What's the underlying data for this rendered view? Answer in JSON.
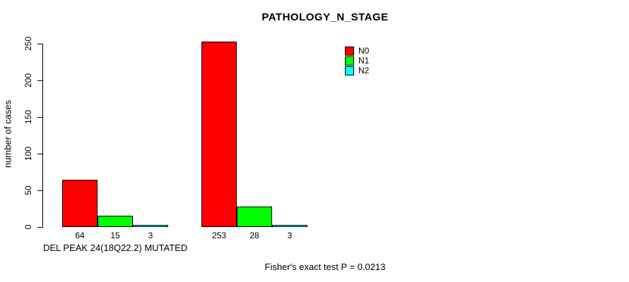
{
  "title": "PATHOLOGY_N_STAGE",
  "y_axis": {
    "label": "number of cases",
    "ticks": [
      0,
      50,
      100,
      150,
      200,
      250
    ]
  },
  "x_axis": {
    "group_label": "DEL PEAK 24(18Q22.2) MUTATED"
  },
  "legend": {
    "items": [
      {
        "label": "N0",
        "color": "#ff0000"
      },
      {
        "label": "N1",
        "color": "#00ff00"
      },
      {
        "label": "N2",
        "color": "#00ffff"
      }
    ]
  },
  "footer": "Fisher's exact test P = 0.0213",
  "chart_data": {
    "type": "bar",
    "title": "PATHOLOGY_N_STAGE",
    "ylabel": "number of cases",
    "xlabel": "",
    "ylim": [
      0,
      250
    ],
    "yticks": [
      0,
      50,
      100,
      150,
      200,
      250
    ],
    "grid": false,
    "legend_position": "top-right",
    "categories": [
      "DEL PEAK 24(18Q22.2) MUTATED",
      ""
    ],
    "series": [
      {
        "name": "N0",
        "color": "#ff0000",
        "values": [
          64,
          253
        ]
      },
      {
        "name": "N1",
        "color": "#00ff00",
        "values": [
          15,
          28
        ]
      },
      {
        "name": "N2",
        "color": "#00ffff",
        "values": [
          3,
          3
        ]
      }
    ],
    "annotation": "Fisher's exact test P = 0.0213"
  }
}
